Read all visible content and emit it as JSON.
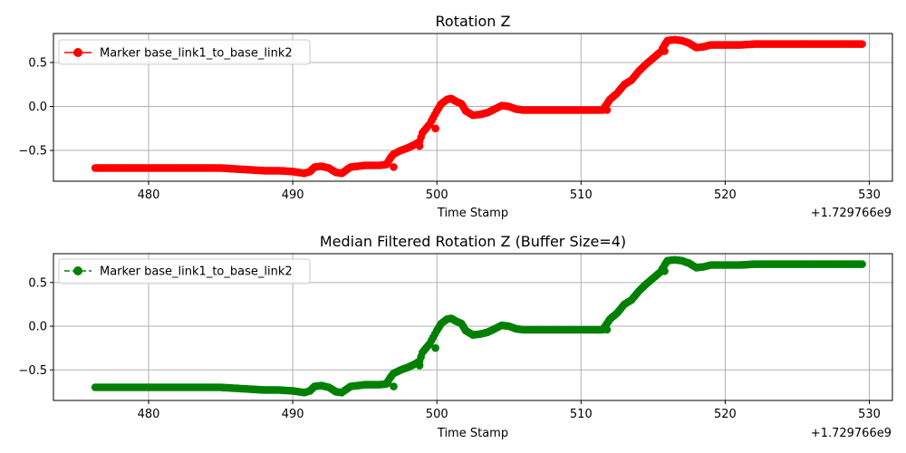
{
  "chart_data": [
    {
      "type": "scatter",
      "title": "Rotation Z",
      "xlabel": "Time Stamp",
      "ylabel": "",
      "offset_text": "+1.729766e9",
      "xlim": [
        473.4,
        531.6
      ],
      "ylim": [
        -0.85,
        0.83
      ],
      "xticks": [
        480,
        490,
        500,
        510,
        520,
        530
      ],
      "yticks": [
        -0.5,
        0.0,
        0.5
      ],
      "ytick_labels": [
        "−0.5",
        "0.0",
        "0.5"
      ],
      "grid": true,
      "legend_position": "upper-left",
      "series": [
        {
          "name": "Marker base_link1_to_base_link2",
          "color": "#ff0000",
          "linestyle": "solid",
          "marker": "o",
          "points": [
            [
              476.3,
              -0.7
            ],
            [
              478,
              -0.7
            ],
            [
              480,
              -0.7
            ],
            [
              482,
              -0.7
            ],
            [
              484,
              -0.7
            ],
            [
              485,
              -0.7
            ],
            [
              486,
              -0.71
            ],
            [
              487,
              -0.72
            ],
            [
              488,
              -0.73
            ],
            [
              489,
              -0.73
            ],
            [
              490,
              -0.74
            ],
            [
              490.8,
              -0.76
            ],
            [
              491.2,
              -0.74
            ],
            [
              491.5,
              -0.69
            ],
            [
              492,
              -0.68
            ],
            [
              492.5,
              -0.7
            ],
            [
              493,
              -0.75
            ],
            [
              493.4,
              -0.76
            ],
            [
              494,
              -0.69
            ],
            [
              495,
              -0.67
            ],
            [
              496,
              -0.67
            ],
            [
              496.5,
              -0.66
            ],
            [
              496.8,
              -0.58
            ],
            [
              497,
              -0.54
            ],
            [
              497.5,
              -0.5
            ],
            [
              498,
              -0.47
            ],
            [
              498.5,
              -0.43
            ],
            [
              498.8,
              -0.4
            ],
            [
              499,
              -0.3
            ],
            [
              499.5,
              -0.2
            ],
            [
              500,
              -0.05
            ],
            [
              500.3,
              0.03
            ],
            [
              500.7,
              0.08
            ],
            [
              501,
              0.09
            ],
            [
              501.3,
              0.06
            ],
            [
              501.7,
              0.03
            ],
            [
              502,
              -0.05
            ],
            [
              502.5,
              -0.1
            ],
            [
              503,
              -0.09
            ],
            [
              503.5,
              -0.07
            ],
            [
              504,
              -0.03
            ],
            [
              504.5,
              0.01
            ],
            [
              505,
              0.0
            ],
            [
              505.5,
              -0.03
            ],
            [
              506,
              -0.04
            ],
            [
              507,
              -0.04
            ],
            [
              508,
              -0.04
            ],
            [
              509,
              -0.04
            ],
            [
              510,
              -0.04
            ],
            [
              511,
              -0.04
            ],
            [
              511.5,
              -0.04
            ],
            [
              511.8,
              0.03
            ],
            [
              512,
              0.08
            ],
            [
              512.5,
              0.15
            ],
            [
              513,
              0.25
            ],
            [
              513.5,
              0.3
            ],
            [
              514,
              0.4
            ],
            [
              514.5,
              0.48
            ],
            [
              515,
              0.55
            ],
            [
              515.5,
              0.62
            ],
            [
              515.8,
              0.7
            ],
            [
              516,
              0.75
            ],
            [
              516.5,
              0.76
            ],
            [
              517,
              0.75
            ],
            [
              517.5,
              0.72
            ],
            [
              518,
              0.67
            ],
            [
              518.5,
              0.68
            ],
            [
              519,
              0.7
            ],
            [
              520,
              0.7
            ],
            [
              521,
              0.7
            ],
            [
              522,
              0.71
            ],
            [
              523,
              0.71
            ],
            [
              524,
              0.71
            ],
            [
              525,
              0.71
            ],
            [
              526,
              0.71
            ],
            [
              527,
              0.71
            ],
            [
              528,
              0.71
            ],
            [
              529,
              0.71
            ],
            [
              529.5,
              0.71
            ]
          ],
          "outliers": [
            [
              497,
              -0.69
            ],
            [
              498.8,
              -0.45
            ],
            [
              499.9,
              -0.25
            ],
            [
              511.8,
              -0.04
            ],
            [
              515.8,
              0.63
            ]
          ]
        }
      ]
    },
    {
      "type": "scatter",
      "title": "Median Filtered Rotation Z (Buffer Size=4)",
      "xlabel": "Time Stamp",
      "ylabel": "",
      "offset_text": "+1.729766e9",
      "xlim": [
        473.4,
        531.6
      ],
      "ylim": [
        -0.85,
        0.83
      ],
      "xticks": [
        480,
        490,
        500,
        510,
        520,
        530
      ],
      "yticks": [
        -0.5,
        0.0,
        0.5
      ],
      "ytick_labels": [
        "−0.5",
        "0.0",
        "0.5"
      ],
      "grid": true,
      "legend_position": "upper-left",
      "series": [
        {
          "name": "Marker base_link1_to_base_link2",
          "color": "#008000",
          "linestyle": "dashed",
          "marker": "o",
          "points": [
            [
              476.3,
              -0.7
            ],
            [
              478,
              -0.7
            ],
            [
              480,
              -0.7
            ],
            [
              482,
              -0.7
            ],
            [
              484,
              -0.7
            ],
            [
              485,
              -0.7
            ],
            [
              486,
              -0.71
            ],
            [
              487,
              -0.72
            ],
            [
              488,
              -0.73
            ],
            [
              489,
              -0.73
            ],
            [
              490,
              -0.74
            ],
            [
              490.8,
              -0.76
            ],
            [
              491.2,
              -0.74
            ],
            [
              491.5,
              -0.69
            ],
            [
              492,
              -0.68
            ],
            [
              492.5,
              -0.7
            ],
            [
              493,
              -0.75
            ],
            [
              493.4,
              -0.76
            ],
            [
              494,
              -0.69
            ],
            [
              495,
              -0.67
            ],
            [
              496,
              -0.67
            ],
            [
              496.5,
              -0.66
            ],
            [
              496.8,
              -0.58
            ],
            [
              497,
              -0.54
            ],
            [
              497.5,
              -0.5
            ],
            [
              498,
              -0.47
            ],
            [
              498.5,
              -0.43
            ],
            [
              498.8,
              -0.4
            ],
            [
              499,
              -0.3
            ],
            [
              499.5,
              -0.2
            ],
            [
              500,
              -0.05
            ],
            [
              500.3,
              0.03
            ],
            [
              500.7,
              0.08
            ],
            [
              501,
              0.09
            ],
            [
              501.3,
              0.06
            ],
            [
              501.7,
              0.03
            ],
            [
              502,
              -0.05
            ],
            [
              502.5,
              -0.1
            ],
            [
              503,
              -0.09
            ],
            [
              503.5,
              -0.07
            ],
            [
              504,
              -0.03
            ],
            [
              504.5,
              0.01
            ],
            [
              505,
              0.0
            ],
            [
              505.5,
              -0.03
            ],
            [
              506,
              -0.04
            ],
            [
              507,
              -0.04
            ],
            [
              508,
              -0.04
            ],
            [
              509,
              -0.04
            ],
            [
              510,
              -0.04
            ],
            [
              511,
              -0.04
            ],
            [
              511.5,
              -0.04
            ],
            [
              511.8,
              0.03
            ],
            [
              512,
              0.08
            ],
            [
              512.5,
              0.15
            ],
            [
              513,
              0.25
            ],
            [
              513.5,
              0.3
            ],
            [
              514,
              0.4
            ],
            [
              514.5,
              0.48
            ],
            [
              515,
              0.55
            ],
            [
              515.5,
              0.62
            ],
            [
              515.8,
              0.7
            ],
            [
              516,
              0.75
            ],
            [
              516.5,
              0.76
            ],
            [
              517,
              0.75
            ],
            [
              517.5,
              0.72
            ],
            [
              518,
              0.67
            ],
            [
              518.5,
              0.68
            ],
            [
              519,
              0.7
            ],
            [
              520,
              0.7
            ],
            [
              521,
              0.7
            ],
            [
              522,
              0.71
            ],
            [
              523,
              0.71
            ],
            [
              524,
              0.71
            ],
            [
              525,
              0.71
            ],
            [
              526,
              0.71
            ],
            [
              527,
              0.71
            ],
            [
              528,
              0.71
            ],
            [
              529,
              0.71
            ],
            [
              529.5,
              0.71
            ]
          ],
          "outliers": [
            [
              497,
              -0.69
            ],
            [
              498.8,
              -0.45
            ],
            [
              499.9,
              -0.25
            ],
            [
              511.8,
              -0.04
            ],
            [
              515.8,
              0.63
            ]
          ]
        }
      ]
    }
  ]
}
